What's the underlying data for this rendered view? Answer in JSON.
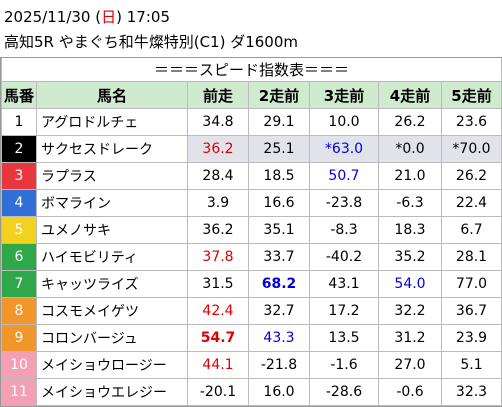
{
  "header": {
    "date": "2025/11/30",
    "weekday": "日",
    "time": "17:05",
    "race": "高知5R やまぐち和牛燦特別(C1) ダ1600m"
  },
  "table": {
    "title": "＝＝＝スピード指数表＝＝＝",
    "columns": [
      "馬番",
      "馬名",
      "前走",
      "2走前",
      "3走前",
      "4走前",
      "5走前"
    ],
    "rows": [
      {
        "no": "1",
        "frame_bg": "#ffffff",
        "frame_fg": "#000000",
        "name": "アグロドルチェ",
        "cells": [
          {
            "text": "34.8"
          },
          {
            "text": "29.1"
          },
          {
            "text": "10.0"
          },
          {
            "text": "26.2"
          },
          {
            "text": "23.6"
          }
        ]
      },
      {
        "no": "2",
        "frame_bg": "#000000",
        "frame_fg": "#ffffff",
        "name": "サクセスドレーク",
        "shaded": true,
        "cells": [
          {
            "text": "36.2",
            "color": "#e00000"
          },
          {
            "text": "25.1"
          },
          {
            "text": "*63.0",
            "color": "#0000e0"
          },
          {
            "text": "*0.0"
          },
          {
            "text": "*70.0"
          }
        ]
      },
      {
        "no": "3",
        "frame_bg": "#e8383d",
        "frame_fg": "#ffffff",
        "name": "ラプラス",
        "cells": [
          {
            "text": "28.4"
          },
          {
            "text": "18.5"
          },
          {
            "text": "50.7",
            "color": "#0000e0"
          },
          {
            "text": "21.0"
          },
          {
            "text": "26.2"
          }
        ]
      },
      {
        "no": "4",
        "frame_bg": "#2f6fd6",
        "frame_fg": "#ffffff",
        "name": "ボマライン",
        "cells": [
          {
            "text": "3.9"
          },
          {
            "text": "16.6"
          },
          {
            "text": "-23.8"
          },
          {
            "text": "-6.3"
          },
          {
            "text": "22.4"
          }
        ]
      },
      {
        "no": "5",
        "frame_bg": "#f2d21e",
        "frame_fg": "#ffffff",
        "name": "ユメノサキ",
        "cells": [
          {
            "text": "36.2"
          },
          {
            "text": "35.1"
          },
          {
            "text": "-8.3"
          },
          {
            "text": "18.3"
          },
          {
            "text": "6.7"
          }
        ]
      },
      {
        "no": "6",
        "frame_bg": "#2ea84a",
        "frame_fg": "#ffffff",
        "name": "ハイモビリティ",
        "cells": [
          {
            "text": "37.8",
            "color": "#e00000"
          },
          {
            "text": "33.7"
          },
          {
            "text": "-40.2"
          },
          {
            "text": "35.2"
          },
          {
            "text": "28.1"
          }
        ]
      },
      {
        "no": "7",
        "frame_bg": "#2ea84a",
        "frame_fg": "#ffffff",
        "name": "キャッツライズ",
        "cells": [
          {
            "text": "31.5"
          },
          {
            "text": "68.2",
            "color": "#0000e0",
            "bold": true
          },
          {
            "text": "43.1"
          },
          {
            "text": "54.0",
            "color": "#0000e0"
          },
          {
            "text": "77.0"
          }
        ]
      },
      {
        "no": "8",
        "frame_bg": "#f0962a",
        "frame_fg": "#ffffff",
        "name": "コスモメイゲツ",
        "cells": [
          {
            "text": "42.4",
            "color": "#e00000"
          },
          {
            "text": "32.7"
          },
          {
            "text": "17.2"
          },
          {
            "text": "32.2"
          },
          {
            "text": "36.7"
          }
        ]
      },
      {
        "no": "9",
        "frame_bg": "#f0962a",
        "frame_fg": "#ffffff",
        "name": "コロンバージュ",
        "cells": [
          {
            "text": "54.7",
            "color": "#e00000",
            "bold": true
          },
          {
            "text": "43.3",
            "color": "#0000e0"
          },
          {
            "text": "13.5"
          },
          {
            "text": "31.2"
          },
          {
            "text": "23.9"
          }
        ]
      },
      {
        "no": "10",
        "frame_bg": "#f4a0b4",
        "frame_fg": "#ffffff",
        "name": "メイショウロージー",
        "cells": [
          {
            "text": "44.1",
            "color": "#e00000"
          },
          {
            "text": "-21.8"
          },
          {
            "text": "-1.6"
          },
          {
            "text": "27.0"
          },
          {
            "text": "5.1"
          }
        ]
      },
      {
        "no": "11",
        "frame_bg": "#f4a0b4",
        "frame_fg": "#ffffff",
        "name": "メイショウエレジー",
        "cells": [
          {
            "text": "-20.1"
          },
          {
            "text": "16.0"
          },
          {
            "text": "-28.6"
          },
          {
            "text": "-0.6"
          },
          {
            "text": "32.3"
          }
        ]
      }
    ]
  }
}
